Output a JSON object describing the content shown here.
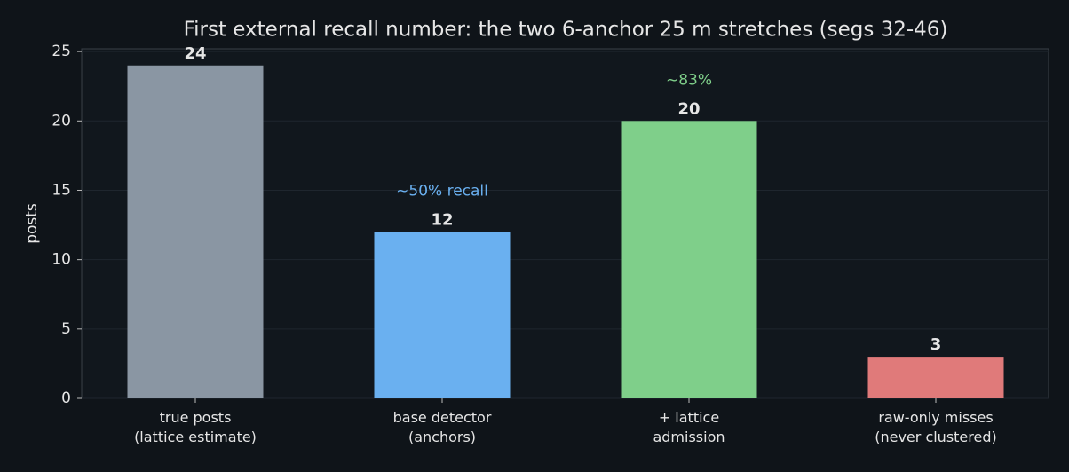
{
  "chart_data": {
    "type": "bar",
    "title": "First external recall number: the two 6-anchor 25 m stretches (segs 32-46)",
    "y_label": "posts",
    "categories": [
      "true posts\n(lattice estimate)",
      "base detector\n(anchors)",
      "+ lattice\nadmission",
      "raw-only misses\n(never clustered)"
    ],
    "values": [
      24,
      12,
      20,
      3
    ],
    "colors": [
      "#8a96a3",
      "#6ab0f0",
      "#7fcf8a",
      "#e07a7a"
    ],
    "annotations": [
      {
        "text": "~50% recall",
        "color": "#6ab0f0"
      },
      {
        "text": "~83%",
        "color": "#7fcf8a"
      }
    ],
    "ylim": [
      0,
      25.2
    ],
    "yticks": [
      0,
      5,
      10,
      15,
      20,
      25
    ],
    "grid": true
  }
}
